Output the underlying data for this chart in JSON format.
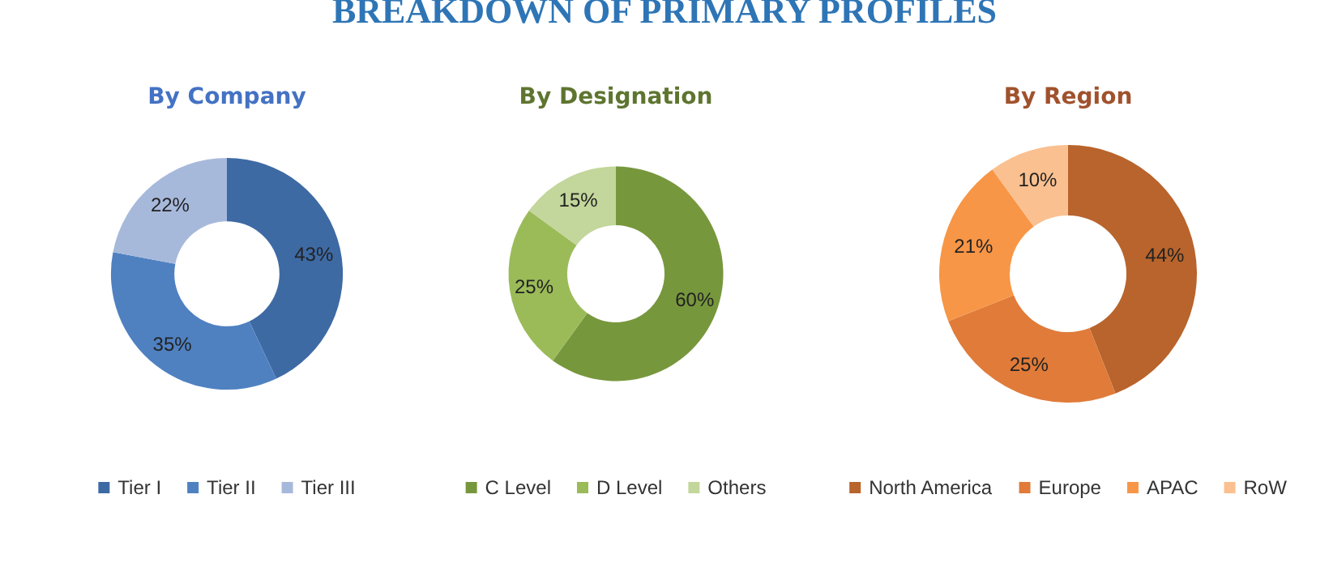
{
  "chart_data": [
    {
      "type": "other",
      "title": "BREAKDOWN OF PRIMARY PROFILES"
    },
    {
      "type": "donut",
      "title": "By Company",
      "categories": [
        "Tier I",
        "Tier II",
        "Tier III"
      ],
      "values": [
        43,
        35,
        22
      ],
      "colors": [
        "#3e6aa4",
        "#4f81c1",
        "#a7b9db"
      ],
      "value_labels": [
        "43%",
        "35%",
        "22%"
      ],
      "legend": "bottom"
    },
    {
      "type": "donut",
      "title": "By Designation",
      "categories": [
        "C Level",
        "D Level",
        "Others"
      ],
      "values": [
        60,
        25,
        15
      ],
      "colors": [
        "#77973d",
        "#9bbb59",
        "#c3d69b"
      ],
      "value_labels": [
        "60%",
        "25%",
        "15%"
      ],
      "legend": "bottom"
    },
    {
      "type": "donut",
      "title": "By Region",
      "categories": [
        "North America",
        "Europe",
        "APAC",
        "RoW"
      ],
      "values": [
        44,
        25,
        21,
        10
      ],
      "colors": [
        "#b8642c",
        "#e07b39",
        "#f79646",
        "#fac090"
      ],
      "value_labels": [
        "44%",
        "25%",
        "21%",
        "10%"
      ],
      "legend": "bottom"
    }
  ]
}
